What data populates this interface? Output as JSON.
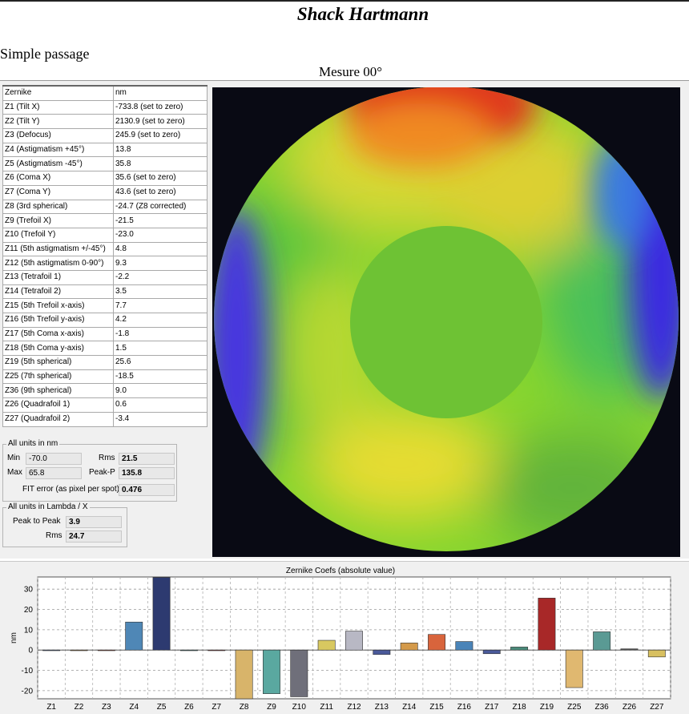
{
  "header": {
    "title": "Shack Hartmann",
    "subtitle": "Simple passage",
    "measure": "Mesure 00°"
  },
  "table": {
    "headers": [
      "Zernike",
      "nm"
    ],
    "rows": [
      [
        "Z1 (Tilt X)",
        "-733.8  (set to zero)"
      ],
      [
        "Z2 (Tilt Y)",
        "2130.9  (set to zero)"
      ],
      [
        "Z3 (Defocus)",
        "245.9  (set to zero)"
      ],
      [
        "Z4 (Astigmatism +45°)",
        "13.8"
      ],
      [
        "Z5 (Astigmatism -45°)",
        "35.8"
      ],
      [
        "Z6 (Coma X)",
        "35.6  (set to zero)"
      ],
      [
        "Z7 (Coma Y)",
        "43.6  (set to zero)"
      ],
      [
        "Z8 (3rd spherical)",
        "-24.7 (Z8 corrected)"
      ],
      [
        "Z9 (Trefoil X)",
        "-21.5"
      ],
      [
        "Z10 (Trefoil Y)",
        "-23.0"
      ],
      [
        "Z11 (5th astigmatism +/-45°)",
        "4.8"
      ],
      [
        "Z12 (5th astigmatism  0-90°)",
        "9.3"
      ],
      [
        "Z13 (Tetrafoil 1)",
        "-2.2"
      ],
      [
        "Z14 (Tetrafoil 2)",
        "3.5"
      ],
      [
        "Z15 (5th Trefoil x-axis)",
        "7.7"
      ],
      [
        "Z16 (5th Trefoil y-axis)",
        "4.2"
      ],
      [
        "Z17 (5th Coma x-axis)",
        "-1.8"
      ],
      [
        "Z18 (5th Coma y-axis)",
        "1.5"
      ],
      [
        "Z19 (5th spherical)",
        "25.6"
      ],
      [
        "Z25 (7th spherical)",
        "-18.5"
      ],
      [
        "Z36 (9th spherical)",
        "9.0"
      ],
      [
        "Z26 (Quadrafoil 1)",
        "0.6"
      ],
      [
        "Z27 (Quadrafoil 2)",
        "-3.4"
      ]
    ]
  },
  "stats_nm": {
    "title": "All units in nm",
    "min_label": "Min",
    "min_value": "-70.0",
    "max_label": "Max",
    "max_value": "65.8",
    "rms_label": "Rms",
    "rms_value": "21.5",
    "peak_label": "Peak-P",
    "peak_value": "135.8",
    "fit_label": "FIT error (as pixel per spot)",
    "fit_value": "0.476"
  },
  "stats_lambda": {
    "title": "All units in Lambda / X",
    "ptp_label": "Peak to Peak",
    "ptp_value": "3.9",
    "rms_label": "Rms",
    "rms_value": "24.7"
  },
  "colors": {
    "bg": "#f0f0f0",
    "map_bg": "#090a14",
    "bar_stroke": "#333333"
  },
  "chart_data": {
    "type": "bar",
    "title": "Zernike Coefs (absolute value)",
    "ylabel": "nm",
    "ylim": [
      -24,
      36
    ],
    "yticks": [
      -20,
      -10,
      0,
      10,
      20,
      30
    ],
    "categories": [
      "Z1",
      "Z2",
      "Z3",
      "Z4",
      "Z5",
      "Z6",
      "Z7",
      "Z8",
      "Z9",
      "Z10",
      "Z11",
      "Z12",
      "Z13",
      "Z14",
      "Z15",
      "Z16",
      "Z17",
      "Z18",
      "Z19",
      "Z25",
      "Z36",
      "Z26",
      "Z27"
    ],
    "values": [
      0,
      0,
      0,
      13.8,
      35.8,
      0,
      0,
      -24.7,
      -21.5,
      -23.0,
      4.8,
      9.3,
      -2.2,
      3.5,
      7.7,
      4.2,
      -1.8,
      1.5,
      25.6,
      -18.5,
      9.0,
      0.6,
      -3.4
    ],
    "colors": [
      "#4a6fa8",
      "#c9903a",
      "#c05030",
      "#4f87b6",
      "#2d3a70",
      "#3a8a8a",
      "#a83030",
      "#d8b46a",
      "#5aa8a0",
      "#6f6f7a",
      "#d8c860",
      "#b8b8c4",
      "#4a5a9a",
      "#d49a4a",
      "#d8643c",
      "#4a84b8",
      "#4a5a9a",
      "#4a8a7a",
      "#a82828",
      "#e0b870",
      "#5a9a94",
      "#505050",
      "#d8c060"
    ],
    "grid": true
  }
}
